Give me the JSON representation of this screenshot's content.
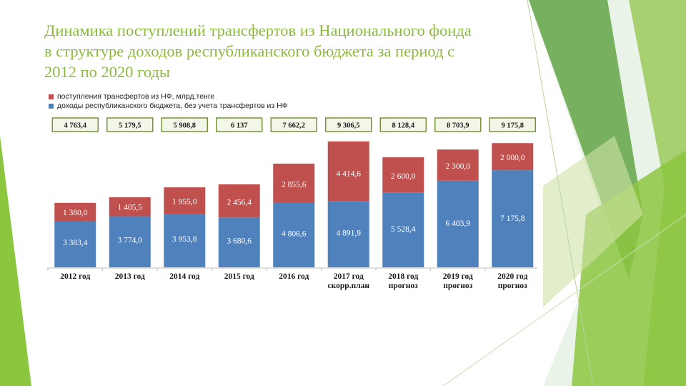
{
  "slide": {
    "title_lines": [
      "Динамика поступлений трансфертов из Национального фонда",
      "в структуре доходов республиканского бюджета за период с",
      "2012 по 2020 годы"
    ]
  },
  "colors": {
    "title": "#8cba3d",
    "transfers": "#c0504d",
    "revenue": "#4f81bd",
    "total_box_border": "#77933c",
    "total_box_fill": "#f2f7e8",
    "deco_green": "#8cc63f"
  },
  "chart_data": {
    "type": "bar",
    "stacked": true,
    "categories": [
      [
        "2012 год"
      ],
      [
        "2013 год"
      ],
      [
        "2014 год"
      ],
      [
        "2015 год"
      ],
      [
        "2016 год"
      ],
      [
        "2017 год",
        "скорр.план"
      ],
      [
        "2018 год",
        "прогноз"
      ],
      [
        "2019 год",
        "прогноз"
      ],
      [
        "2020 год",
        "прогноз"
      ]
    ],
    "series": [
      {
        "name": "доходы республиканского бюджета, без учета трансфертов из НФ",
        "color": "#4f81bd",
        "values": [
          3383.4,
          3774.0,
          3953.8,
          3680.6,
          4806.6,
          4891.9,
          5528.4,
          6403.9,
          7175.8
        ],
        "labels": [
          "3 383,4",
          "3 774,0",
          "3 953,8",
          "3 680,6",
          "4 806,6",
          "4 891,9",
          "5 528,4",
          "6 403,9",
          "7 175,8"
        ]
      },
      {
        "name": "поступления трансфертов из НФ, млрд.тенге",
        "color": "#c0504d",
        "values": [
          1380.0,
          1405.5,
          1955.0,
          2456.4,
          2855.6,
          4414.6,
          2600.0,
          2300.0,
          2000.0
        ],
        "labels": [
          "1 380,0",
          "1 405,5",
          "1 955,0",
          "2 456,4",
          "2 855,6",
          "4 414,6",
          "2 600,0",
          "2 300,0",
          "2 000,0"
        ]
      }
    ],
    "totals": {
      "values": [
        4763.4,
        5179.5,
        5908.8,
        6137.0,
        7662.2,
        9306.5,
        8128.4,
        8703.9,
        9175.8
      ],
      "labels": [
        "4 763,4",
        "5 179,5",
        "5 908,8",
        "6 137",
        "7 662,2",
        "9 306,5",
        "8 128,4",
        "8 703,9",
        "9 175,8"
      ]
    },
    "legend_position": "top-left",
    "ylim": [
      0,
      9400
    ],
    "grid": false,
    "xlabel": "",
    "ylabel": ""
  }
}
